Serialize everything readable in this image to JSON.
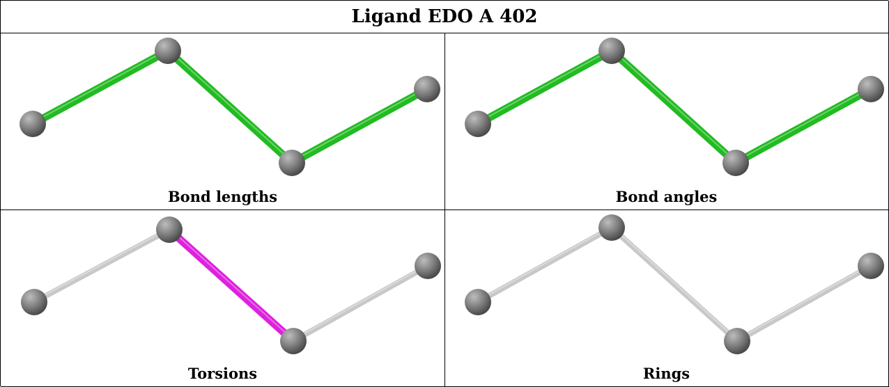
{
  "title": "Ligand EDO A 402",
  "panels": [
    {
      "caption": "Bond lengths",
      "bond_colors": [
        "green",
        "green",
        "green"
      ]
    },
    {
      "caption": "Bond angles",
      "bond_colors": [
        "green",
        "green",
        "green"
      ]
    },
    {
      "caption": "Torsions",
      "bond_colors": [
        "grey",
        "magenta",
        "grey"
      ]
    },
    {
      "caption": "Rings",
      "bond_colors": [
        "grey",
        "grey",
        "grey"
      ]
    }
  ],
  "colors": {
    "green": "#22bb22",
    "magenta": "#dd22dd",
    "grey": "#c8c8c8",
    "atom": "#7a7a7a"
  }
}
